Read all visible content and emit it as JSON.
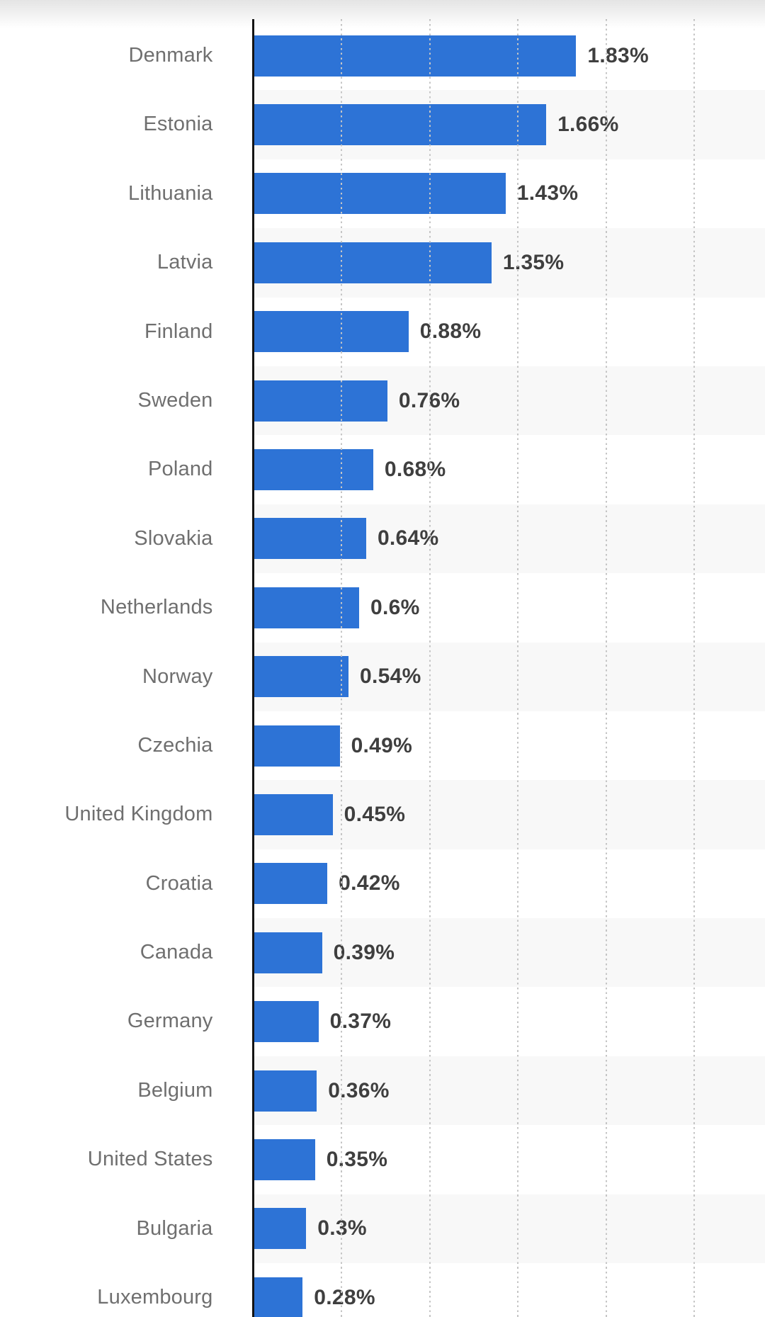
{
  "chart_data": {
    "type": "bar",
    "orientation": "horizontal",
    "title": "",
    "xlabel": "",
    "ylabel": "",
    "unit": "%",
    "categories": [
      "Denmark",
      "Estonia",
      "Lithuania",
      "Latvia",
      "Finland",
      "Sweden",
      "Poland",
      "Slovakia",
      "Netherlands",
      "Norway",
      "Czechia",
      "United Kingdom",
      "Croatia",
      "Canada",
      "Germany",
      "Belgium",
      "United States",
      "Bulgaria",
      "Luxembourg"
    ],
    "values": [
      1.83,
      1.66,
      1.43,
      1.35,
      0.88,
      0.76,
      0.68,
      0.64,
      0.6,
      0.54,
      0.49,
      0.45,
      0.42,
      0.39,
      0.37,
      0.36,
      0.35,
      0.3,
      0.28
    ],
    "value_labels": [
      "1.83%",
      "1.66%",
      "1.43%",
      "1.35%",
      "0.88%",
      "0.76%",
      "0.68%",
      "0.64%",
      "0.6%",
      "0.54%",
      "0.49%",
      "0.45%",
      "0.42%",
      "0.39%",
      "0.37%",
      "0.36%",
      "0.35%",
      "0.3%",
      "0.28%"
    ],
    "xlim": [
      0,
      2.9
    ],
    "gridline_values": [
      0.5,
      1.0,
      1.5,
      2.0,
      2.5
    ],
    "gridline_style": "dotted",
    "legend_position": "none",
    "axis_tick_labels_visible": false,
    "bar_color": "#2d73d6",
    "row_stripe_colors": [
      "#ffffff",
      "#f8f8f8"
    ],
    "axis_line_color": "#141414",
    "gridline_color": "#c5c5c5",
    "category_label_color": "#6f6f6f",
    "value_label_color": "#3f3f3f"
  }
}
